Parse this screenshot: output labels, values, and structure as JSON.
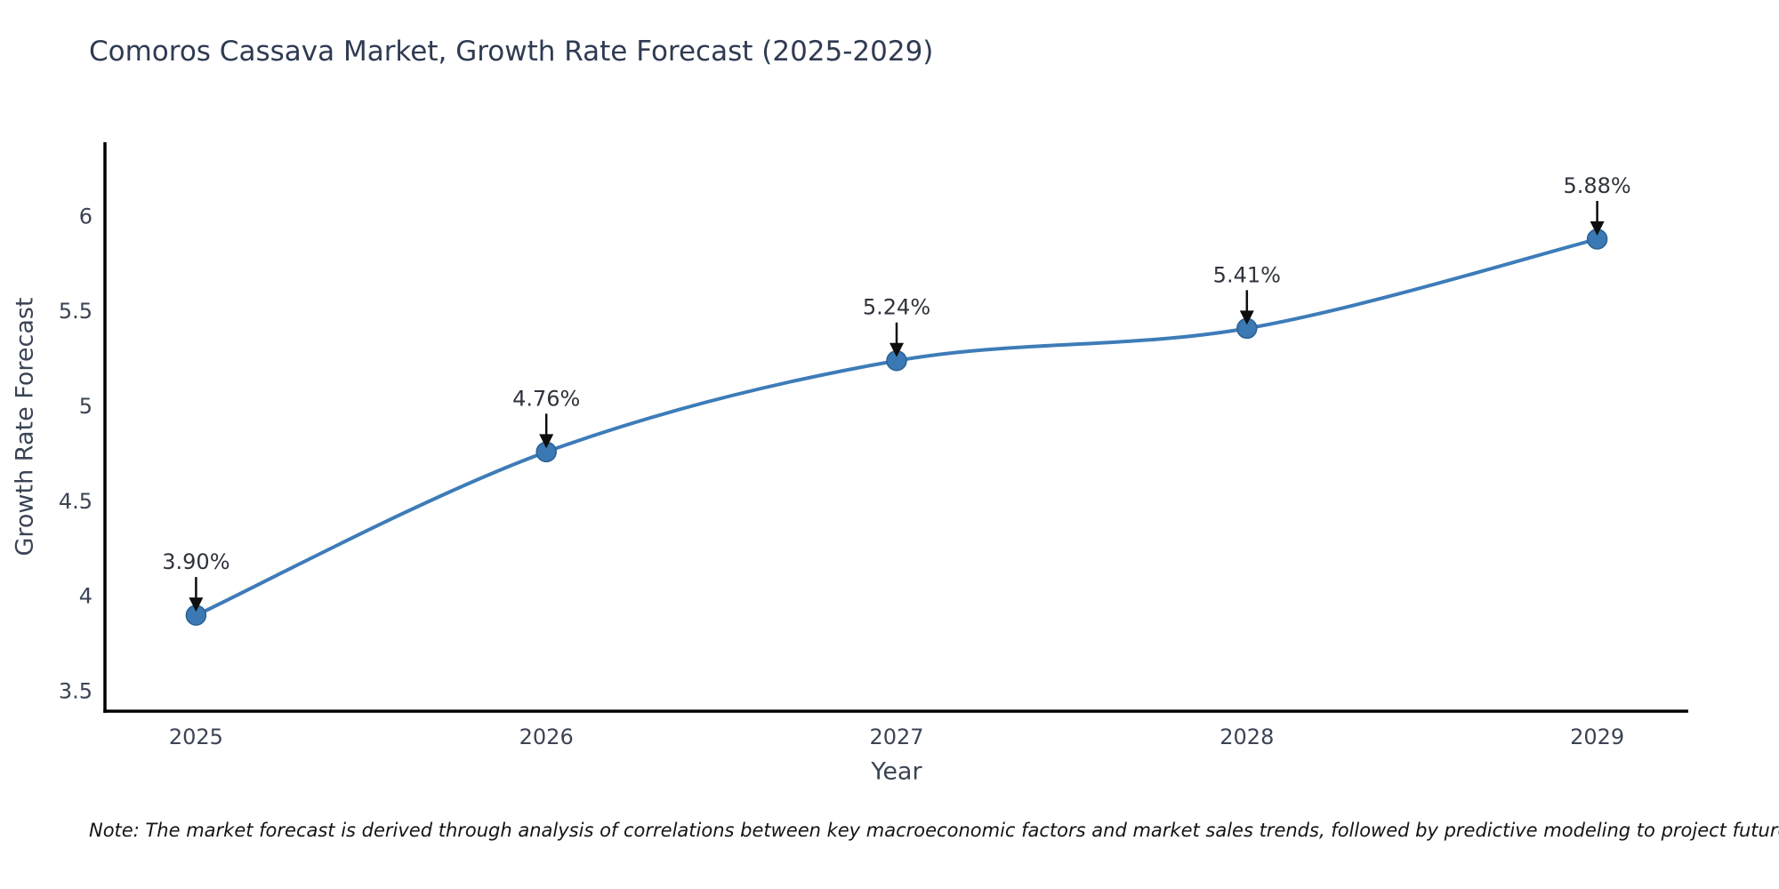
{
  "chart_data": {
    "type": "line",
    "title": "Comoros Cassava Market, Growth Rate Forecast (2025-2029)",
    "xlabel": "Year",
    "ylabel": "Growth Rate Forecast",
    "x": [
      2025,
      2026,
      2027,
      2028,
      2029
    ],
    "values": [
      3.9,
      4.76,
      5.24,
      5.41,
      5.88
    ],
    "point_labels": [
      "3.90%",
      "4.76%",
      "5.24%",
      "5.41%",
      "5.88%"
    ],
    "xtick_labels": [
      "2025",
      "2026",
      "2027",
      "2028",
      "2029"
    ],
    "xtick_values": [
      2025,
      2026,
      2027,
      2028,
      2029
    ],
    "ytick_labels": [
      "3.5",
      "4",
      "4.5",
      "5",
      "5.5",
      "6"
    ],
    "ytick_values": [
      3.5,
      4,
      4.5,
      5,
      5.5,
      6
    ],
    "xlim": [
      2024.74,
      2029.26
    ],
    "ylim": [
      3.395,
      6.39
    ],
    "grid": false,
    "legend": null,
    "smooth_curve": true,
    "annotations_have_arrows": true,
    "colors": {
      "line": "#3d7cb8",
      "marker_fill": "#3a79b4",
      "marker_edge": "#2c6091",
      "arrow": "#0e0e0e",
      "spine": "#000000",
      "tick_label": "#3b4454",
      "annotation_text": "#2f333c"
    }
  },
  "note": {
    "text": "Note: The market forecast is derived through analysis of correlations between key macroeconomic factors and market sales trends, followed by predictive modeling to project future sales"
  }
}
